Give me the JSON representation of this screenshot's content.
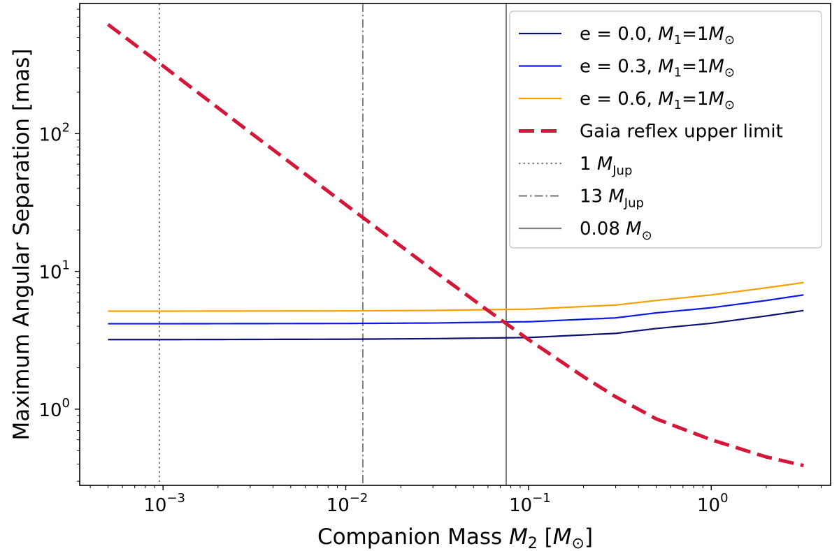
{
  "chart_data": {
    "type": "line",
    "x_scale": "log",
    "y_scale": "log",
    "xlim": [
      0.00035,
      4.5
    ],
    "ylim": [
      0.28,
      880
    ],
    "x_tick_labels": [
      {
        "value": 0.001,
        "base": "10",
        "exp": "−3"
      },
      {
        "value": 0.01,
        "base": "10",
        "exp": "−2"
      },
      {
        "value": 0.1,
        "base": "10",
        "exp": "−1"
      },
      {
        "value": 1,
        "base": "10",
        "exp": "0"
      }
    ],
    "y_tick_labels": [
      {
        "value": 1,
        "base": "10",
        "exp": "0"
      },
      {
        "value": 10,
        "base": "10",
        "exp": "1"
      },
      {
        "value": 100,
        "base": "10",
        "exp": "2"
      }
    ],
    "xlabel": {
      "pre": "Companion Mass ",
      "var": "M",
      "sub": "2",
      "post": " [",
      "unit_var": "M",
      "unit_sub": "⊙",
      "close": "]"
    },
    "ylabel": "Maximum Angular Separation [mas]",
    "grid": false,
    "legend_position": "top-right",
    "series": [
      {
        "name": "e = 0.0, M1=1M⊙",
        "label_pre": "e = 0.0, ",
        "color": "#0d1270",
        "style": "solid",
        "x": [
          0.0005,
          0.001,
          0.003,
          0.01,
          0.03,
          0.08,
          0.1,
          0.3,
          0.5,
          1.0,
          2.0,
          3.2
        ],
        "y": [
          3.2,
          3.2,
          3.21,
          3.22,
          3.25,
          3.3,
          3.31,
          3.55,
          3.85,
          4.2,
          4.75,
          5.2
        ]
      },
      {
        "name": "e = 0.3, M1=1M⊙",
        "label_pre": "e = 0.3, ",
        "color": "#0c18e6",
        "style": "solid",
        "x": [
          0.0005,
          0.001,
          0.003,
          0.01,
          0.03,
          0.08,
          0.1,
          0.3,
          0.5,
          1.0,
          2.0,
          3.2
        ],
        "y": [
          4.17,
          4.17,
          4.18,
          4.19,
          4.22,
          4.3,
          4.31,
          4.6,
          5.0,
          5.45,
          6.15,
          6.75
        ]
      },
      {
        "name": "e = 0.6, M1=1M⊙",
        "label_pre": "e = 0.6, ",
        "color": "#f5a000",
        "style": "solid",
        "x": [
          0.0005,
          0.001,
          0.003,
          0.01,
          0.03,
          0.08,
          0.1,
          0.3,
          0.5,
          1.0,
          2.0,
          3.2
        ],
        "y": [
          5.15,
          5.15,
          5.16,
          5.17,
          5.21,
          5.3,
          5.32,
          5.7,
          6.15,
          6.75,
          7.6,
          8.3
        ]
      },
      {
        "name": "Gaia reflex upper limit",
        "color": "#d41638",
        "style": "dashed",
        "x": [
          0.0005,
          0.001,
          0.003,
          0.01,
          0.03,
          0.06,
          0.1,
          0.2,
          0.3,
          0.5,
          1.0,
          2.0,
          3.2
        ],
        "y": [
          620,
          310,
          102,
          30.5,
          10.2,
          5.2,
          3.2,
          1.72,
          1.23,
          0.85,
          0.6,
          0.45,
          0.39
        ]
      }
    ],
    "reference_lines": [
      {
        "name": "1 MJup",
        "label_pre": "1 ",
        "label_var": "M",
        "label_sub": "Jup",
        "x": 0.000955,
        "color": "#7f7f7f",
        "style": "dotted"
      },
      {
        "name": "13 MJup",
        "label_pre": "13 ",
        "label_var": "M",
        "label_sub": "Jup",
        "x": 0.0124,
        "color": "#7f7f7f",
        "style": "dashdot"
      },
      {
        "name": "0.08 M⊙",
        "label_pre": "0.08 ",
        "label_var": "M",
        "label_sub": "⊙",
        "x": 0.0755,
        "color": "#7f7f7f",
        "style": "solid"
      }
    ]
  }
}
